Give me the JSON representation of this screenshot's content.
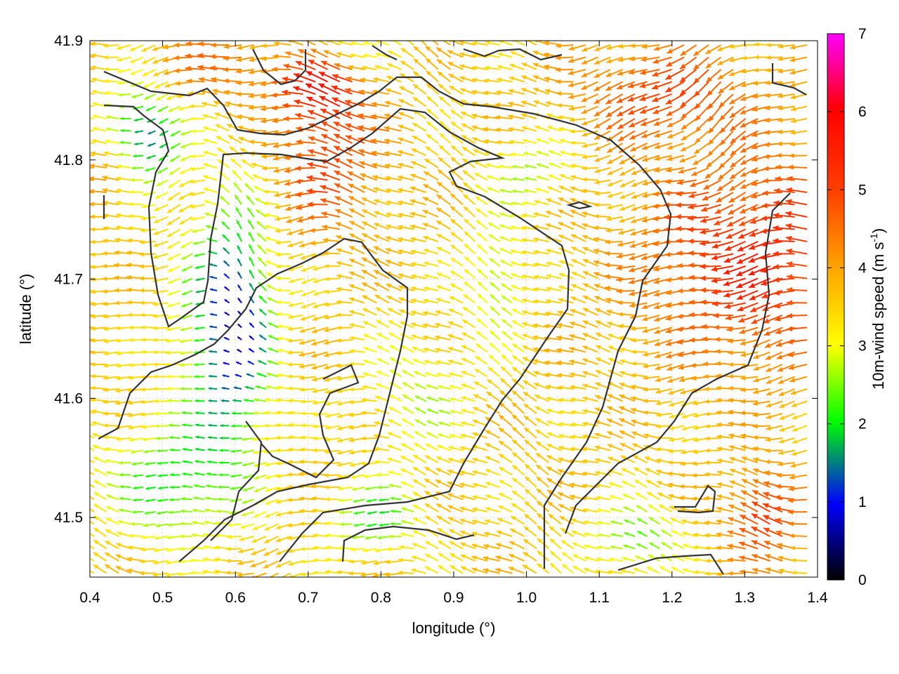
{
  "chart_data": {
    "type": "vector-field",
    "xlabel": "longitude (°)",
    "ylabel": "latitude (°)",
    "xlim": [
      0.4,
      1.4
    ],
    "ylim": [
      41.45,
      41.9
    ],
    "x_ticks": [
      "0.4",
      "0.5",
      "0.6",
      "0.7",
      "0.8",
      "0.9",
      "1.0",
      "1.1",
      "1.2",
      "1.3",
      "1.4"
    ],
    "y_ticks": [
      "41.5",
      "41.6",
      "41.7",
      "41.8",
      "41.9"
    ],
    "grid": true,
    "colorbar": {
      "label": "10m-wind speed (m s",
      "label_sup": "-1",
      "label_end": ")",
      "range": [
        0,
        7
      ],
      "ticks": [
        "0",
        "1",
        "2",
        "3",
        "4",
        "5",
        "6",
        "7"
      ],
      "colors": [
        "#000000",
        "#0000ff",
        "#00ff00",
        "#ffff00",
        "#ffa500",
        "#ff0000",
        "#ff00ff"
      ]
    },
    "wind_direction_note": "predominantly westward flow",
    "contour_color": "#333333"
  }
}
